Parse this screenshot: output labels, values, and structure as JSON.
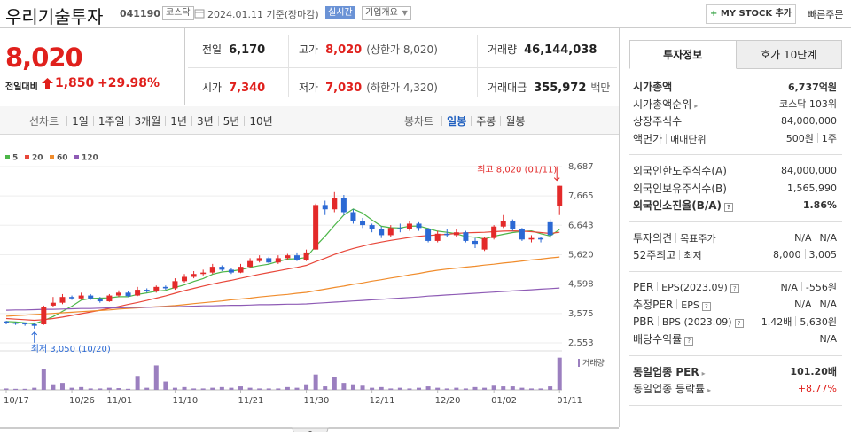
{
  "header": {
    "name": "우리기술투자",
    "code": "041190",
    "market": "코스닥",
    "date": "2024.01.11 기준(장마감)",
    "realtime": "실시간",
    "overview": "기업개요",
    "mystock": "MY STOCK 추가",
    "quick_order": "빠른주문"
  },
  "quote": {
    "price": "8,020",
    "change_label": "전일대비",
    "change": "1,850",
    "change_rate": "+29.98%",
    "cells": [
      {
        "label": "전일",
        "value": "6,170"
      },
      {
        "label": "고가",
        "value": "8,020",
        "note": "(상한가 8,020)",
        "color": "#e0201c"
      },
      {
        "label": "거래량",
        "value": "46,144,038"
      },
      {
        "label": "시가",
        "value": "7,340",
        "color": "#e0201c"
      },
      {
        "label": "저가",
        "value": "7,030",
        "note": "(하한가 4,320)",
        "color": "#e0201c"
      },
      {
        "label": "거래대금",
        "value": "355,972",
        "note": "백만"
      }
    ]
  },
  "tabs": {
    "line": {
      "label": "선차트",
      "items": [
        "1일",
        "1주일",
        "3개월",
        "1년",
        "3년",
        "5년",
        "10년"
      ]
    },
    "candle": {
      "label": "봉차트",
      "items": [
        "일봉",
        "주봉",
        "월봉"
      ],
      "active": 0
    }
  },
  "chart_data": {
    "type": "candlestick",
    "categories": [
      "10/17",
      null,
      null,
      null,
      null,
      null,
      null,
      "10/26",
      null,
      null,
      null,
      "11/01",
      null,
      null,
      null,
      null,
      null,
      null,
      "11/10",
      null,
      null,
      null,
      null,
      null,
      null,
      "11/21",
      null,
      null,
      null,
      null,
      null,
      null,
      "11/30",
      null,
      null,
      null,
      null,
      null,
      null,
      "12/11",
      null,
      null,
      null,
      null,
      null,
      null,
      "12/20",
      null,
      null,
      null,
      null,
      null,
      "01/02",
      null,
      null,
      null,
      null,
      null,
      null,
      "01/11"
    ],
    "open": [
      3300,
      3250,
      3230,
      3200,
      3200,
      3850,
      3950,
      4150,
      4100,
      4200,
      4100,
      4000,
      4200,
      4300,
      4200,
      4400,
      4350,
      4500,
      4450,
      4700,
      4850,
      4950,
      5000,
      5200,
      5100,
      5000,
      5200,
      5400,
      5500,
      5350,
      5500,
      5600,
      5450,
      5800,
      7350,
      7200,
      7600,
      7100,
      6800,
      6650,
      6500,
      6300,
      6550,
      6500,
      6700,
      6500,
      6100,
      6350,
      6300,
      6400,
      6100,
      5800,
      6200,
      6600,
      6800,
      6500,
      6150,
      6200,
      6750,
      7300
    ],
    "high": [
      3320,
      3280,
      3260,
      3230,
      3850,
      4150,
      4250,
      4200,
      4300,
      4250,
      4150,
      4250,
      4380,
      4350,
      4500,
      4450,
      4550,
      4550,
      4800,
      4950,
      5050,
      5100,
      5300,
      5250,
      5150,
      5300,
      5500,
      5600,
      5550,
      5600,
      5650,
      5700,
      5800,
      7400,
      7500,
      7800,
      7700,
      7200,
      6900,
      6700,
      6600,
      6650,
      6700,
      6800,
      6750,
      6550,
      6450,
      6500,
      6500,
      6450,
      6200,
      6250,
      6650,
      7000,
      6850,
      6550,
      6300,
      6250,
      6850,
      8020
    ],
    "low": [
      3200,
      3180,
      3150,
      3050,
      3180,
      3800,
      3900,
      4050,
      4050,
      4050,
      3950,
      3980,
      4150,
      4150,
      4180,
      4300,
      4300,
      4400,
      4400,
      4650,
      4800,
      4900,
      4950,
      5050,
      4950,
      4980,
      5150,
      5350,
      5300,
      5300,
      5450,
      5400,
      5400,
      5800,
      7000,
      7100,
      7000,
      6700,
      6550,
      6400,
      6200,
      6250,
      6400,
      6450,
      6450,
      6050,
      6050,
      6250,
      6250,
      6050,
      5850,
      5750,
      6150,
      6550,
      6450,
      6100,
      6050,
      6050,
      6200,
      7000
    ],
    "close": [
      3250,
      3230,
      3200,
      3150,
      3800,
      3950,
      4150,
      4100,
      4200,
      4100,
      4000,
      4200,
      4300,
      4180,
      4400,
      4350,
      4500,
      4450,
      4700,
      4850,
      4950,
      5000,
      5200,
      5100,
      5000,
      5200,
      5400,
      5500,
      5350,
      5500,
      5600,
      5450,
      5700,
      7350,
      7200,
      7600,
      7100,
      6800,
      6650,
      6500,
      6300,
      6550,
      6500,
      6700,
      6550,
      6100,
      6350,
      6300,
      6400,
      6100,
      6000,
      6200,
      6600,
      6800,
      6500,
      6150,
      6200,
      6150,
      6300,
      8020
    ],
    "up_color": "#e32a2a",
    "down_color": "#2b69d4",
    "series": [
      {
        "name": "5",
        "color": "#4cb648",
        "values": [
          3300,
          3280,
          3250,
          3220,
          3330,
          3470,
          3650,
          3830,
          4040,
          4100,
          4110,
          4120,
          4160,
          4160,
          4240,
          4290,
          4350,
          4380,
          4480,
          4570,
          4690,
          4790,
          4940,
          5020,
          5050,
          5100,
          5180,
          5240,
          5290,
          5390,
          5470,
          5480,
          5520,
          5920,
          6260,
          6640,
          7000,
          7210,
          7070,
          6830,
          6610,
          6560,
          6550,
          6610,
          6620,
          6530,
          6440,
          6400,
          6350,
          6250,
          6230,
          6170,
          6260,
          6330,
          6390,
          6430,
          6450,
          6350,
          6270,
          6500
        ]
      },
      {
        "name": "20",
        "color": "#e8473a",
        "values": [
          3400,
          3380,
          3360,
          3340,
          3360,
          3400,
          3450,
          3510,
          3570,
          3630,
          3690,
          3750,
          3820,
          3890,
          3960,
          4030,
          4110,
          4190,
          4280,
          4370,
          4450,
          4530,
          4600,
          4670,
          4730,
          4800,
          4870,
          4940,
          5000,
          5060,
          5120,
          5180,
          5250,
          5380,
          5500,
          5630,
          5740,
          5840,
          5920,
          6000,
          6060,
          6120,
          6170,
          6220,
          6260,
          6290,
          6310,
          6330,
          6360,
          6380,
          6390,
          6400,
          6420,
          6440,
          6450,
          6440,
          6420,
          6390,
          6360,
          6400
        ]
      },
      {
        "name": "60",
        "color": "#f08c2c",
        "values": [
          3480,
          3500,
          3520,
          3540,
          3560,
          3580,
          3600,
          3620,
          3640,
          3660,
          3680,
          3700,
          3730,
          3750,
          3770,
          3790,
          3810,
          3830,
          3850,
          3880,
          3920,
          3950,
          3980,
          4010,
          4050,
          4080,
          4110,
          4150,
          4180,
          4210,
          4240,
          4280,
          4310,
          4370,
          4420,
          4480,
          4530,
          4590,
          4640,
          4700,
          4750,
          4810,
          4860,
          4920,
          4970,
          5030,
          5080,
          5120,
          5150,
          5190,
          5220,
          5260,
          5290,
          5330,
          5360,
          5400,
          5440,
          5470,
          5510,
          5540
        ]
      },
      {
        "name": "120",
        "color": "#8e5bb5",
        "values": [
          3690,
          3700,
          3700,
          3710,
          3720,
          3720,
          3730,
          3740,
          3750,
          3750,
          3760,
          3770,
          3770,
          3780,
          3790,
          3790,
          3800,
          3810,
          3810,
          3820,
          3830,
          3840,
          3840,
          3850,
          3860,
          3860,
          3870,
          3880,
          3880,
          3890,
          3900,
          3900,
          3910,
          3930,
          3950,
          3970,
          3990,
          4010,
          4030,
          4050,
          4070,
          4090,
          4110,
          4130,
          4150,
          4180,
          4200,
          4220,
          4240,
          4260,
          4280,
          4300,
          4320,
          4340,
          4360,
          4380,
          4400,
          4420,
          4440,
          4460
        ]
      }
    ],
    "ylim": [
      2553,
      8687
    ],
    "yticks": [
      {
        "value": 8687,
        "label": "8,687"
      },
      {
        "value": 7665,
        "label": "7,665"
      },
      {
        "value": 6643,
        "label": "6,643"
      },
      {
        "value": 5620,
        "label": "5,620"
      },
      {
        "value": 4598,
        "label": "4,598"
      },
      {
        "value": 3575,
        "label": "3,575"
      },
      {
        "value": 2553,
        "label": "2,553"
      }
    ],
    "grid": true,
    "volume": {
      "label": "거래량",
      "color": "#9b7fbf",
      "ylim": [
        0,
        47000000
      ],
      "values": [
        2000000,
        1500000,
        1500000,
        3000000,
        30000000,
        8000000,
        10000000,
        3000000,
        4000000,
        2000000,
        2000000,
        3000000,
        2500000,
        1500000,
        20000000,
        3000000,
        35000000,
        12000000,
        3000000,
        4000000,
        2000000,
        2000000,
        3000000,
        4000000,
        3000000,
        5000000,
        3000000,
        2000000,
        2000000,
        2000000,
        4000000,
        3000000,
        8000000,
        22000000,
        5000000,
        18000000,
        10000000,
        8000000,
        6000000,
        3000000,
        4000000,
        2000000,
        3000000,
        2000000,
        3000000,
        5000000,
        3000000,
        2000000,
        3000000,
        2000000,
        4000000,
        3000000,
        6000000,
        5000000,
        5000000,
        3000000,
        2000000,
        2000000,
        5000000,
        46144038
      ]
    },
    "annotations": {
      "high": "최고 8,020 (01/11)",
      "low": "최저 3,050 (10/20)"
    }
  },
  "sidebar": {
    "tabs": [
      "투자정보",
      "호가 10단계"
    ],
    "active_tab": 0,
    "sections": [
      [
        {
          "label": [
            "시가총액"
          ],
          "value": [
            "6,737억원"
          ],
          "bold": true
        },
        {
          "label": [
            "시가총액순위"
          ],
          "link": true,
          "value": [
            "코스닥 103위"
          ]
        },
        {
          "label": [
            "상장주식수"
          ],
          "value": [
            "84,000,000"
          ]
        },
        {
          "label": [
            "액면가",
            "매매단위"
          ],
          "value": [
            "500원",
            "1주"
          ]
        }
      ],
      [
        {
          "label": [
            "외국인한도주식수(A)"
          ],
          "value": [
            "84,000,000"
          ]
        },
        {
          "label": [
            "외국인보유주식수(B)"
          ],
          "value": [
            "1,565,990"
          ]
        },
        {
          "label": [
            "외국인소진율(B/A)"
          ],
          "help": true,
          "value": [
            "1.86%"
          ],
          "bold": true
        }
      ],
      [
        {
          "label": [
            "투자의견",
            "목표주가"
          ],
          "value": [
            "N/A",
            "N/A"
          ]
        },
        {
          "label": [
            "52주최고",
            "최저"
          ],
          "value": [
            "8,000",
            "3,005"
          ]
        }
      ],
      [
        {
          "label": [
            "PER",
            "EPS(2023.09)"
          ],
          "help": true,
          "value": [
            "N/A",
            "-556원"
          ]
        },
        {
          "label": [
            "추정PER",
            "EPS"
          ],
          "help": true,
          "value": [
            "N/A",
            "N/A"
          ]
        },
        {
          "label": [
            "PBR",
            "BPS (2023.09)"
          ],
          "help": true,
          "value": [
            "1.42배",
            "5,630원"
          ]
        },
        {
          "label": [
            "배당수익률"
          ],
          "help": true,
          "value": [
            "N/A"
          ]
        }
      ],
      [
        {
          "label": [
            "동일업종 PER"
          ],
          "link": true,
          "value": [
            "101.20배"
          ],
          "bold": true
        },
        {
          "label": [
            "동일업종 등락률"
          ],
          "link": true,
          "value": [
            "+8.77%"
          ],
          "color": "#e0201c"
        }
      ]
    ]
  }
}
